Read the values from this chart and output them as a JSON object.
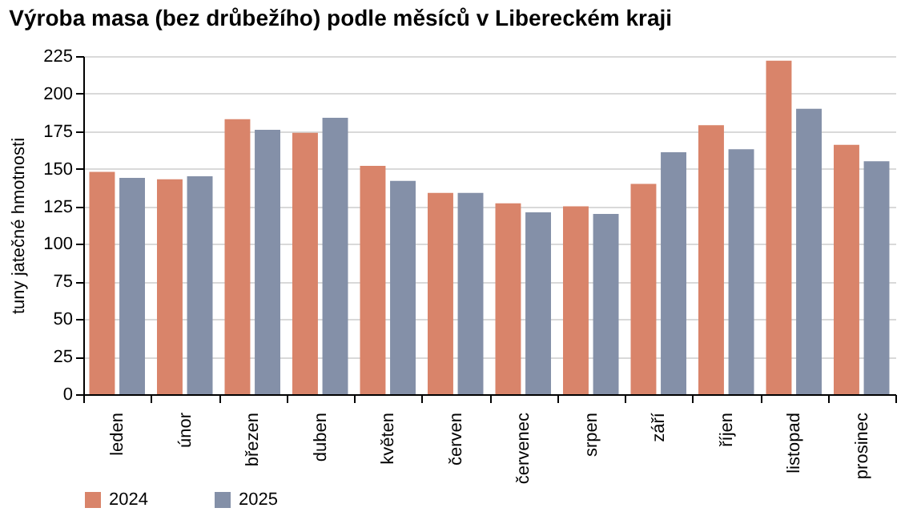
{
  "chart_data": {
    "type": "bar",
    "title": "Výroba masa (bez drůbežího) podle měsíců v Libereckém kraji",
    "ylabel": "tuny jatečné hmotnosti",
    "categories": [
      "leden",
      "únor",
      "březen",
      "duben",
      "květen",
      "červen",
      "červenec",
      "srpen",
      "září",
      "říjen",
      "listopad",
      "prosinec"
    ],
    "series": [
      {
        "name": "2024",
        "color": "#d9846a",
        "values": [
          148,
          143,
          183,
          174,
          152,
          134,
          127,
          125,
          140,
          179,
          222,
          166
        ]
      },
      {
        "name": "2025",
        "color": "#8490a8",
        "values": [
          144,
          145,
          176,
          184,
          142,
          134,
          121,
          120,
          161,
          163,
          190,
          155
        ]
      }
    ],
    "ylim": [
      0,
      225
    ],
    "yticks": [
      0,
      25,
      50,
      75,
      100,
      125,
      150,
      175,
      200,
      225
    ],
    "grid": "y",
    "legend": "bottom"
  }
}
